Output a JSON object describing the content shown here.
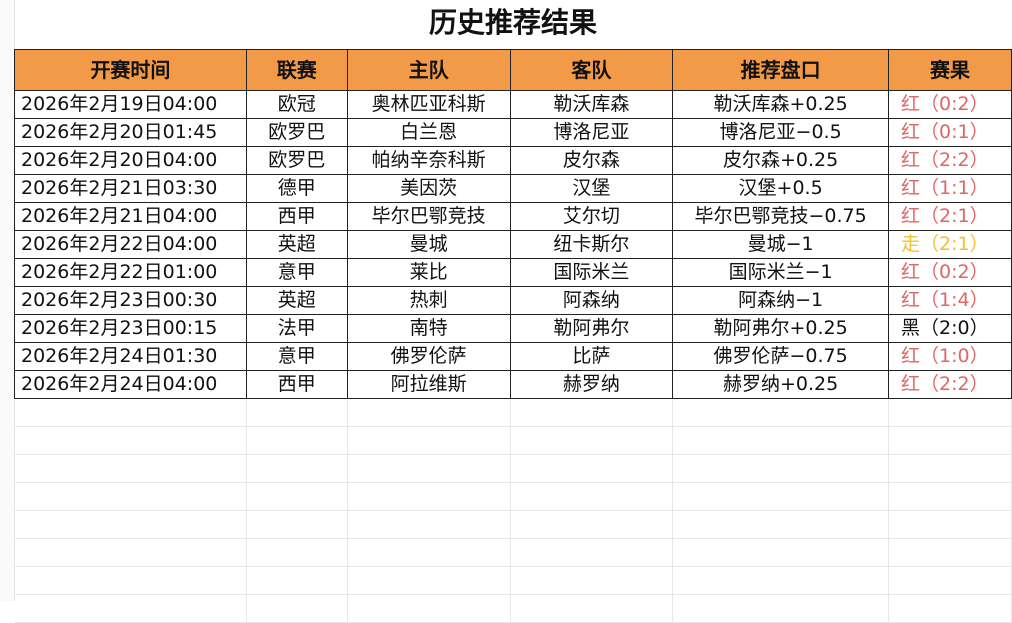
{
  "title": "历史推荐结果",
  "columns": [
    "开赛时间",
    "联赛",
    "主队",
    "客队",
    "推荐盘口",
    "赛果"
  ],
  "colors": {
    "header_bg": "#f39a48",
    "win": "#e06666",
    "push": "#f1c232",
    "loss": "#111111"
  },
  "rows": [
    {
      "time": "2026年2月19日04:00",
      "league": "欧冠",
      "home": "奥林匹亚科斯",
      "away": "勒沃库森",
      "pick": "勒沃库森+0.25",
      "result": "红（0:2）",
      "status": "win"
    },
    {
      "time": "2026年2月20日01:45",
      "league": "欧罗巴",
      "home": "白兰恩",
      "away": "博洛尼亚",
      "pick": "博洛尼亚−0.5",
      "result": "红（0:1）",
      "status": "win"
    },
    {
      "time": "2026年2月20日04:00",
      "league": "欧罗巴",
      "home": "帕纳辛奈科斯",
      "away": "皮尔森",
      "pick": "皮尔森+0.25",
      "result": "红（2:2）",
      "status": "win"
    },
    {
      "time": "2026年2月21日03:30",
      "league": "德甲",
      "home": "美因茨",
      "away": "汉堡",
      "pick": "汉堡+0.5",
      "result": "红（1:1）",
      "status": "win"
    },
    {
      "time": "2026年2月21日04:00",
      "league": "西甲",
      "home": "毕尔巴鄂竞技",
      "away": "艾尔切",
      "pick": "毕尔巴鄂竞技−0.75",
      "result": "红（2:1）",
      "status": "win"
    },
    {
      "time": "2026年2月22日04:00",
      "league": "英超",
      "home": "曼城",
      "away": "纽卡斯尔",
      "pick": "曼城−1",
      "result": "走（2:1）",
      "status": "push"
    },
    {
      "time": "2026年2月22日01:00",
      "league": "意甲",
      "home": "莱比",
      "away": "国际米兰",
      "pick": "国际米兰−1",
      "result": "红（0:2）",
      "status": "win"
    },
    {
      "time": "2026年2月23日00:30",
      "league": "英超",
      "home": "热刺",
      "away": "阿森纳",
      "pick": "阿森纳−1",
      "result": "红（1:4）",
      "status": "win"
    },
    {
      "time": "2026年2月23日00:15",
      "league": "法甲",
      "home": "南特",
      "away": "勒阿弗尔",
      "pick": "勒阿弗尔+0.25",
      "result": "黑（2:0）",
      "status": "loss"
    },
    {
      "time": "2026年2月24日01:30",
      "league": "意甲",
      "home": "佛罗伦萨",
      "away": "比萨",
      "pick": "佛罗伦萨−0.75",
      "result": "红（1:0）",
      "status": "win"
    },
    {
      "time": "2026年2月24日04:00",
      "league": "西甲",
      "home": "阿拉维斯",
      "away": "赫罗纳",
      "pick": "赫罗纳+0.25",
      "result": "红（2:2）",
      "status": "win"
    }
  ]
}
